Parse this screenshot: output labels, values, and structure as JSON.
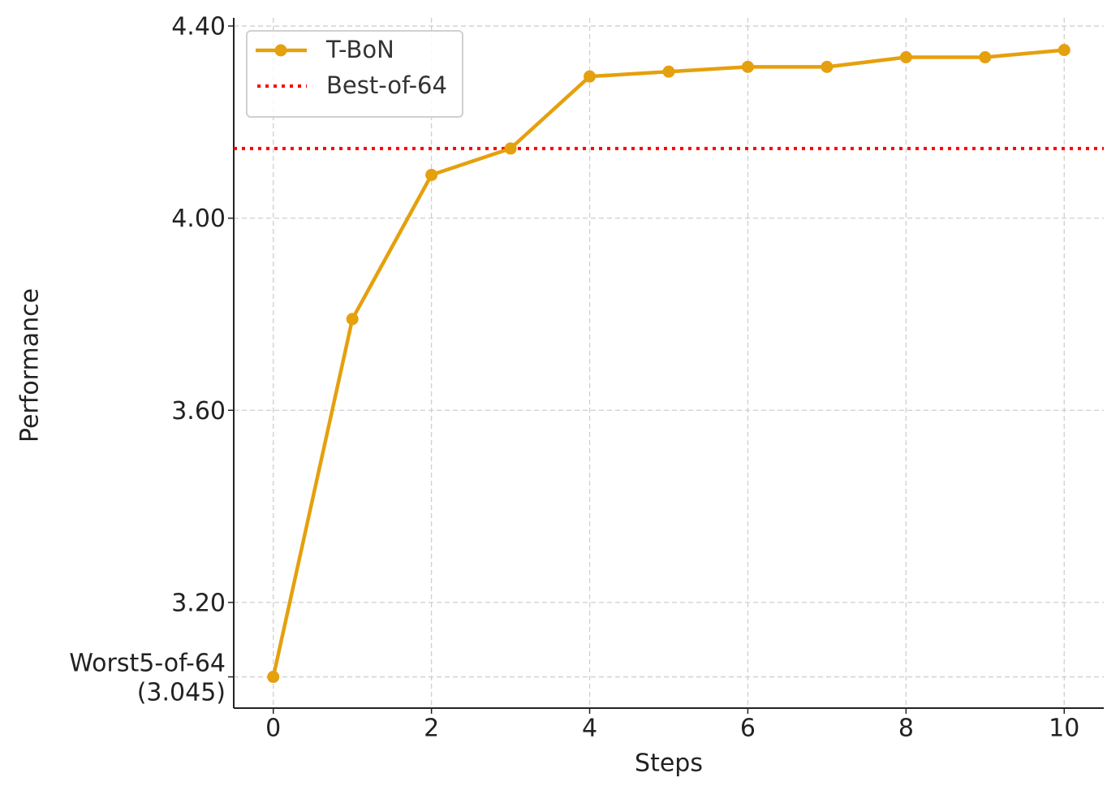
{
  "chart_data": {
    "type": "line",
    "x_label": "Steps",
    "y_label": "Performance",
    "x": [
      0,
      1,
      2,
      3,
      4,
      5,
      6,
      7,
      8,
      9,
      10
    ],
    "series": [
      {
        "name": "T-BoN",
        "color": "#e5a00d",
        "values": [
          3.045,
          3.79,
          4.09,
          4.145,
          4.295,
          4.305,
          4.315,
          4.315,
          4.335,
          4.335,
          4.35
        ]
      }
    ],
    "reference_lines": [
      {
        "name": "Best-of-64",
        "color": "#ff0000",
        "value": 4.145,
        "style": "dotted"
      }
    ],
    "xlim": [
      -0.5,
      10.5
    ],
    "ylim": [
      2.98,
      4.417
    ],
    "xticks": [
      0,
      2,
      4,
      6,
      8,
      10
    ],
    "yticks": [
      {
        "value": 3.045,
        "label": "Worst5-of-64\n(3.045)"
      },
      {
        "value": 3.2,
        "label": "3.20"
      },
      {
        "value": 3.6,
        "label": "3.60"
      },
      {
        "value": 4,
        "label": "4.00"
      },
      {
        "value": 4.4,
        "label": "4.40"
      }
    ],
    "grid": true,
    "legend": "upper left"
  }
}
